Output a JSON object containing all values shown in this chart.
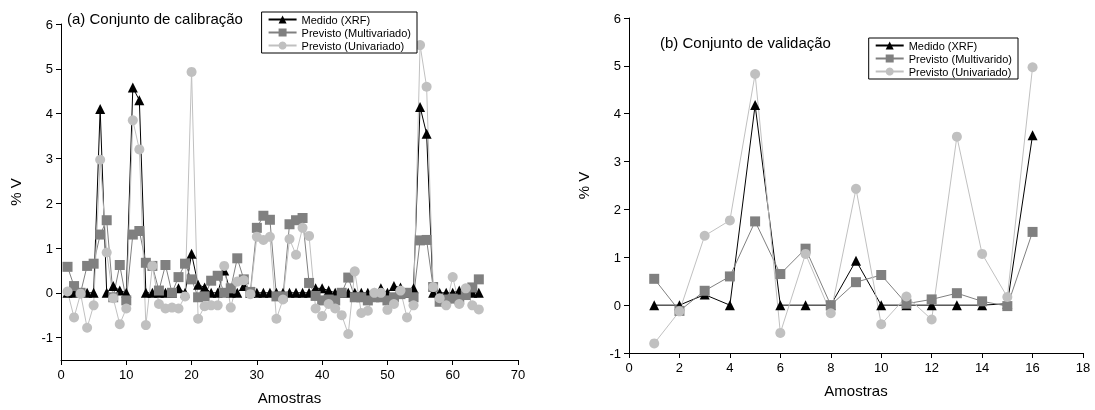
{
  "chart_data": [
    {
      "type": "line",
      "title": "(a) Conjunto de calibração",
      "xlabel": "Amostras",
      "ylabel": "% V",
      "x": [
        1,
        2,
        3,
        4,
        5,
        6,
        7,
        8,
        9,
        10,
        11,
        12,
        13,
        14,
        15,
        16,
        17,
        18,
        19,
        20,
        21,
        22,
        23,
        24,
        25,
        26,
        27,
        28,
        29,
        30,
        31,
        32,
        33,
        34,
        35,
        36,
        37,
        38,
        39,
        40,
        41,
        42,
        43,
        44,
        45,
        46,
        47,
        48,
        49,
        50,
        51,
        52,
        53,
        54,
        55,
        56,
        57,
        58,
        59,
        60,
        61,
        62,
        63,
        64
      ],
      "xlim": [
        0,
        70
      ],
      "xticks": [
        0,
        10,
        20,
        30,
        40,
        50,
        60,
        70
      ],
      "ylim": [
        -1.5,
        6
      ],
      "yticks": [
        -1,
        0,
        1,
        2,
        3,
        4,
        5,
        6
      ],
      "grid": false,
      "legend": "top right",
      "line_style": "solid",
      "series": [
        {
          "name": "Medido (XRF)",
          "color": "#000000",
          "marker": "triangle",
          "values": [
            0,
            0,
            0,
            0,
            0,
            4.1,
            0,
            0.15,
            0.05,
            0,
            4.58,
            4.3,
            0,
            0,
            0,
            0,
            0,
            0.1,
            0,
            0.87,
            0.18,
            0.12,
            0,
            0,
            0.5,
            0,
            0,
            0.15,
            0,
            0,
            0,
            0,
            0,
            0,
            0,
            0,
            0,
            0,
            0.1,
            0.1,
            0.05,
            0,
            0,
            0,
            0,
            0,
            0,
            0,
            0.1,
            0,
            0.15,
            0.12,
            0,
            0.1,
            4.15,
            3.55,
            0,
            0,
            0,
            0,
            0.05,
            0,
            0,
            0
          ]
        },
        {
          "name": "Previsto (Multivariado)",
          "color": "#808080",
          "marker": "square",
          "values": [
            0.58,
            0.15,
            0,
            0.6,
            0.65,
            1.3,
            1.62,
            -0.1,
            0.62,
            -0.17,
            1.3,
            1.38,
            0.67,
            0.6,
            0.05,
            0.62,
            0,
            0.35,
            0.65,
            0.3,
            -0.1,
            -0.08,
            0.27,
            0.38,
            0,
            0.1,
            0.77,
            0.3,
            0.02,
            1.45,
            1.72,
            1.63,
            -0.08,
            -0.08,
            1.53,
            1.62,
            1.67,
            0.22,
            -0.07,
            -0.17,
            -0.15,
            -0.17,
            0,
            0.34,
            -0.1,
            -0.1,
            -0.17,
            -0.1,
            -0.1,
            -0.17,
            -0.1,
            -0.03,
            0,
            -0.1,
            1.17,
            1.18,
            0.13,
            -0.2,
            -0.15,
            -0.13,
            -0.15,
            -0.05,
            0.12,
            0.3
          ]
        },
        {
          "name": "Previsto (Univariado)",
          "color": "#c0c0c0",
          "marker": "circle",
          "values": [
            0.03,
            -0.55,
            -0.02,
            -0.78,
            -0.28,
            2.97,
            0.9,
            -0.12,
            -0.7,
            -0.35,
            3.85,
            3.2,
            -0.72,
            0.6,
            -0.25,
            -0.35,
            -0.33,
            -0.35,
            -0.08,
            4.93,
            -0.58,
            -0.3,
            -0.28,
            -0.28,
            0.6,
            -0.33,
            0.25,
            0.28,
            -0.03,
            1.25,
            1.18,
            1.25,
            -0.58,
            -0.15,
            1.2,
            0.85,
            1.45,
            1.27,
            -0.35,
            -0.52,
            -0.25,
            -0.35,
            -0.5,
            -0.92,
            0.48,
            -0.45,
            -0.4,
            0,
            0,
            -0.38,
            -0.25,
            0.05,
            -0.55,
            -0.28,
            5.53,
            4.6,
            0.13,
            -0.12,
            -0.28,
            0.35,
            -0.25,
            0.1,
            -0.28,
            -0.37
          ]
        }
      ]
    },
    {
      "type": "line",
      "title": "(b) Conjunto de validação",
      "xlabel": "Amostras",
      "ylabel": "% V",
      "x": [
        1,
        2,
        3,
        4,
        5,
        6,
        7,
        8,
        9,
        10,
        11,
        12,
        13,
        14,
        15,
        16
      ],
      "xlim": [
        0,
        18
      ],
      "xticks": [
        0,
        2,
        4,
        6,
        8,
        10,
        12,
        14,
        16,
        18
      ],
      "ylim": [
        -1,
        6
      ],
      "yticks": [
        -1,
        0,
        1,
        2,
        3,
        4,
        5,
        6
      ],
      "grid": false,
      "legend": "top right",
      "line_style": "solid",
      "series": [
        {
          "name": "Medido (XRF)",
          "color": "#000000",
          "marker": "triangle",
          "values": [
            0,
            0,
            0.22,
            0,
            4.18,
            0,
            0,
            0,
            0.93,
            0,
            0,
            0,
            0,
            0,
            0.03,
            3.55
          ]
        },
        {
          "name": "Previsto (Multivarido)",
          "color": "#808080",
          "marker": "square",
          "values": [
            0.55,
            -0.12,
            0.3,
            0.6,
            1.75,
            0.65,
            1.18,
            0,
            0.48,
            0.63,
            0.03,
            0.12,
            0.25,
            0.08,
            -0.02,
            1.53
          ]
        },
        {
          "name": "Previsto (Univariado)",
          "color": "#c0c0c0",
          "marker": "circle",
          "values": [
            -0.8,
            -0.13,
            1.45,
            1.77,
            4.83,
            -0.58,
            1.07,
            -0.17,
            2.43,
            -0.4,
            0.18,
            -0.3,
            3.52,
            1.07,
            0.17,
            4.97
          ]
        }
      ]
    }
  ]
}
